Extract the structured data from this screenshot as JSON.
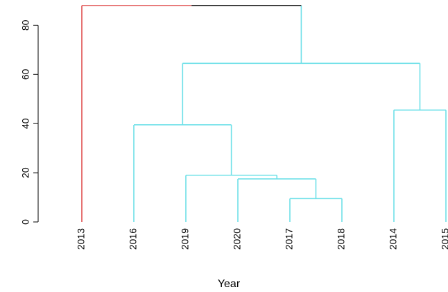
{
  "chart_data": {
    "type": "dendrogram",
    "title": "",
    "xlabel": "Year",
    "ylabel": "",
    "ylim": [
      0,
      88
    ],
    "yticks": [
      0,
      20,
      40,
      60,
      80
    ],
    "leaves": [
      "2013",
      "2016",
      "2019",
      "2020",
      "2017",
      "2018",
      "2014",
      "2015"
    ],
    "merges": [
      {
        "id": "m1",
        "left": "2017",
        "right": "2018",
        "height": 9.5,
        "color": "#6ee0e8"
      },
      {
        "id": "m2",
        "left": "2020",
        "right": "m1",
        "height": 17.5,
        "color": "#6ee0e8"
      },
      {
        "id": "m3",
        "left": "2019",
        "right": "m2",
        "height": 19.0,
        "color": "#6ee0e8"
      },
      {
        "id": "m4",
        "left": "2016",
        "right": "m3",
        "height": 39.5,
        "color": "#6ee0e8"
      },
      {
        "id": "m5",
        "left": "2014",
        "right": "2015",
        "height": 45.5,
        "color": "#6ee0e8"
      },
      {
        "id": "m6",
        "left": "m4",
        "right": "m5",
        "height": 64.5,
        "color": "#6ee0e8"
      },
      {
        "id": "m7",
        "left": "2013",
        "right": "m6",
        "height": 88.0,
        "color": "#000000",
        "left_color": "#e05050"
      }
    ],
    "leaf_colors": {
      "2013": "#e05050",
      "2016": "#6ee0e8",
      "2019": "#6ee0e8",
      "2020": "#6ee0e8",
      "2017": "#6ee0e8",
      "2018": "#6ee0e8",
      "2014": "#6ee0e8",
      "2015": "#6ee0e8"
    }
  }
}
